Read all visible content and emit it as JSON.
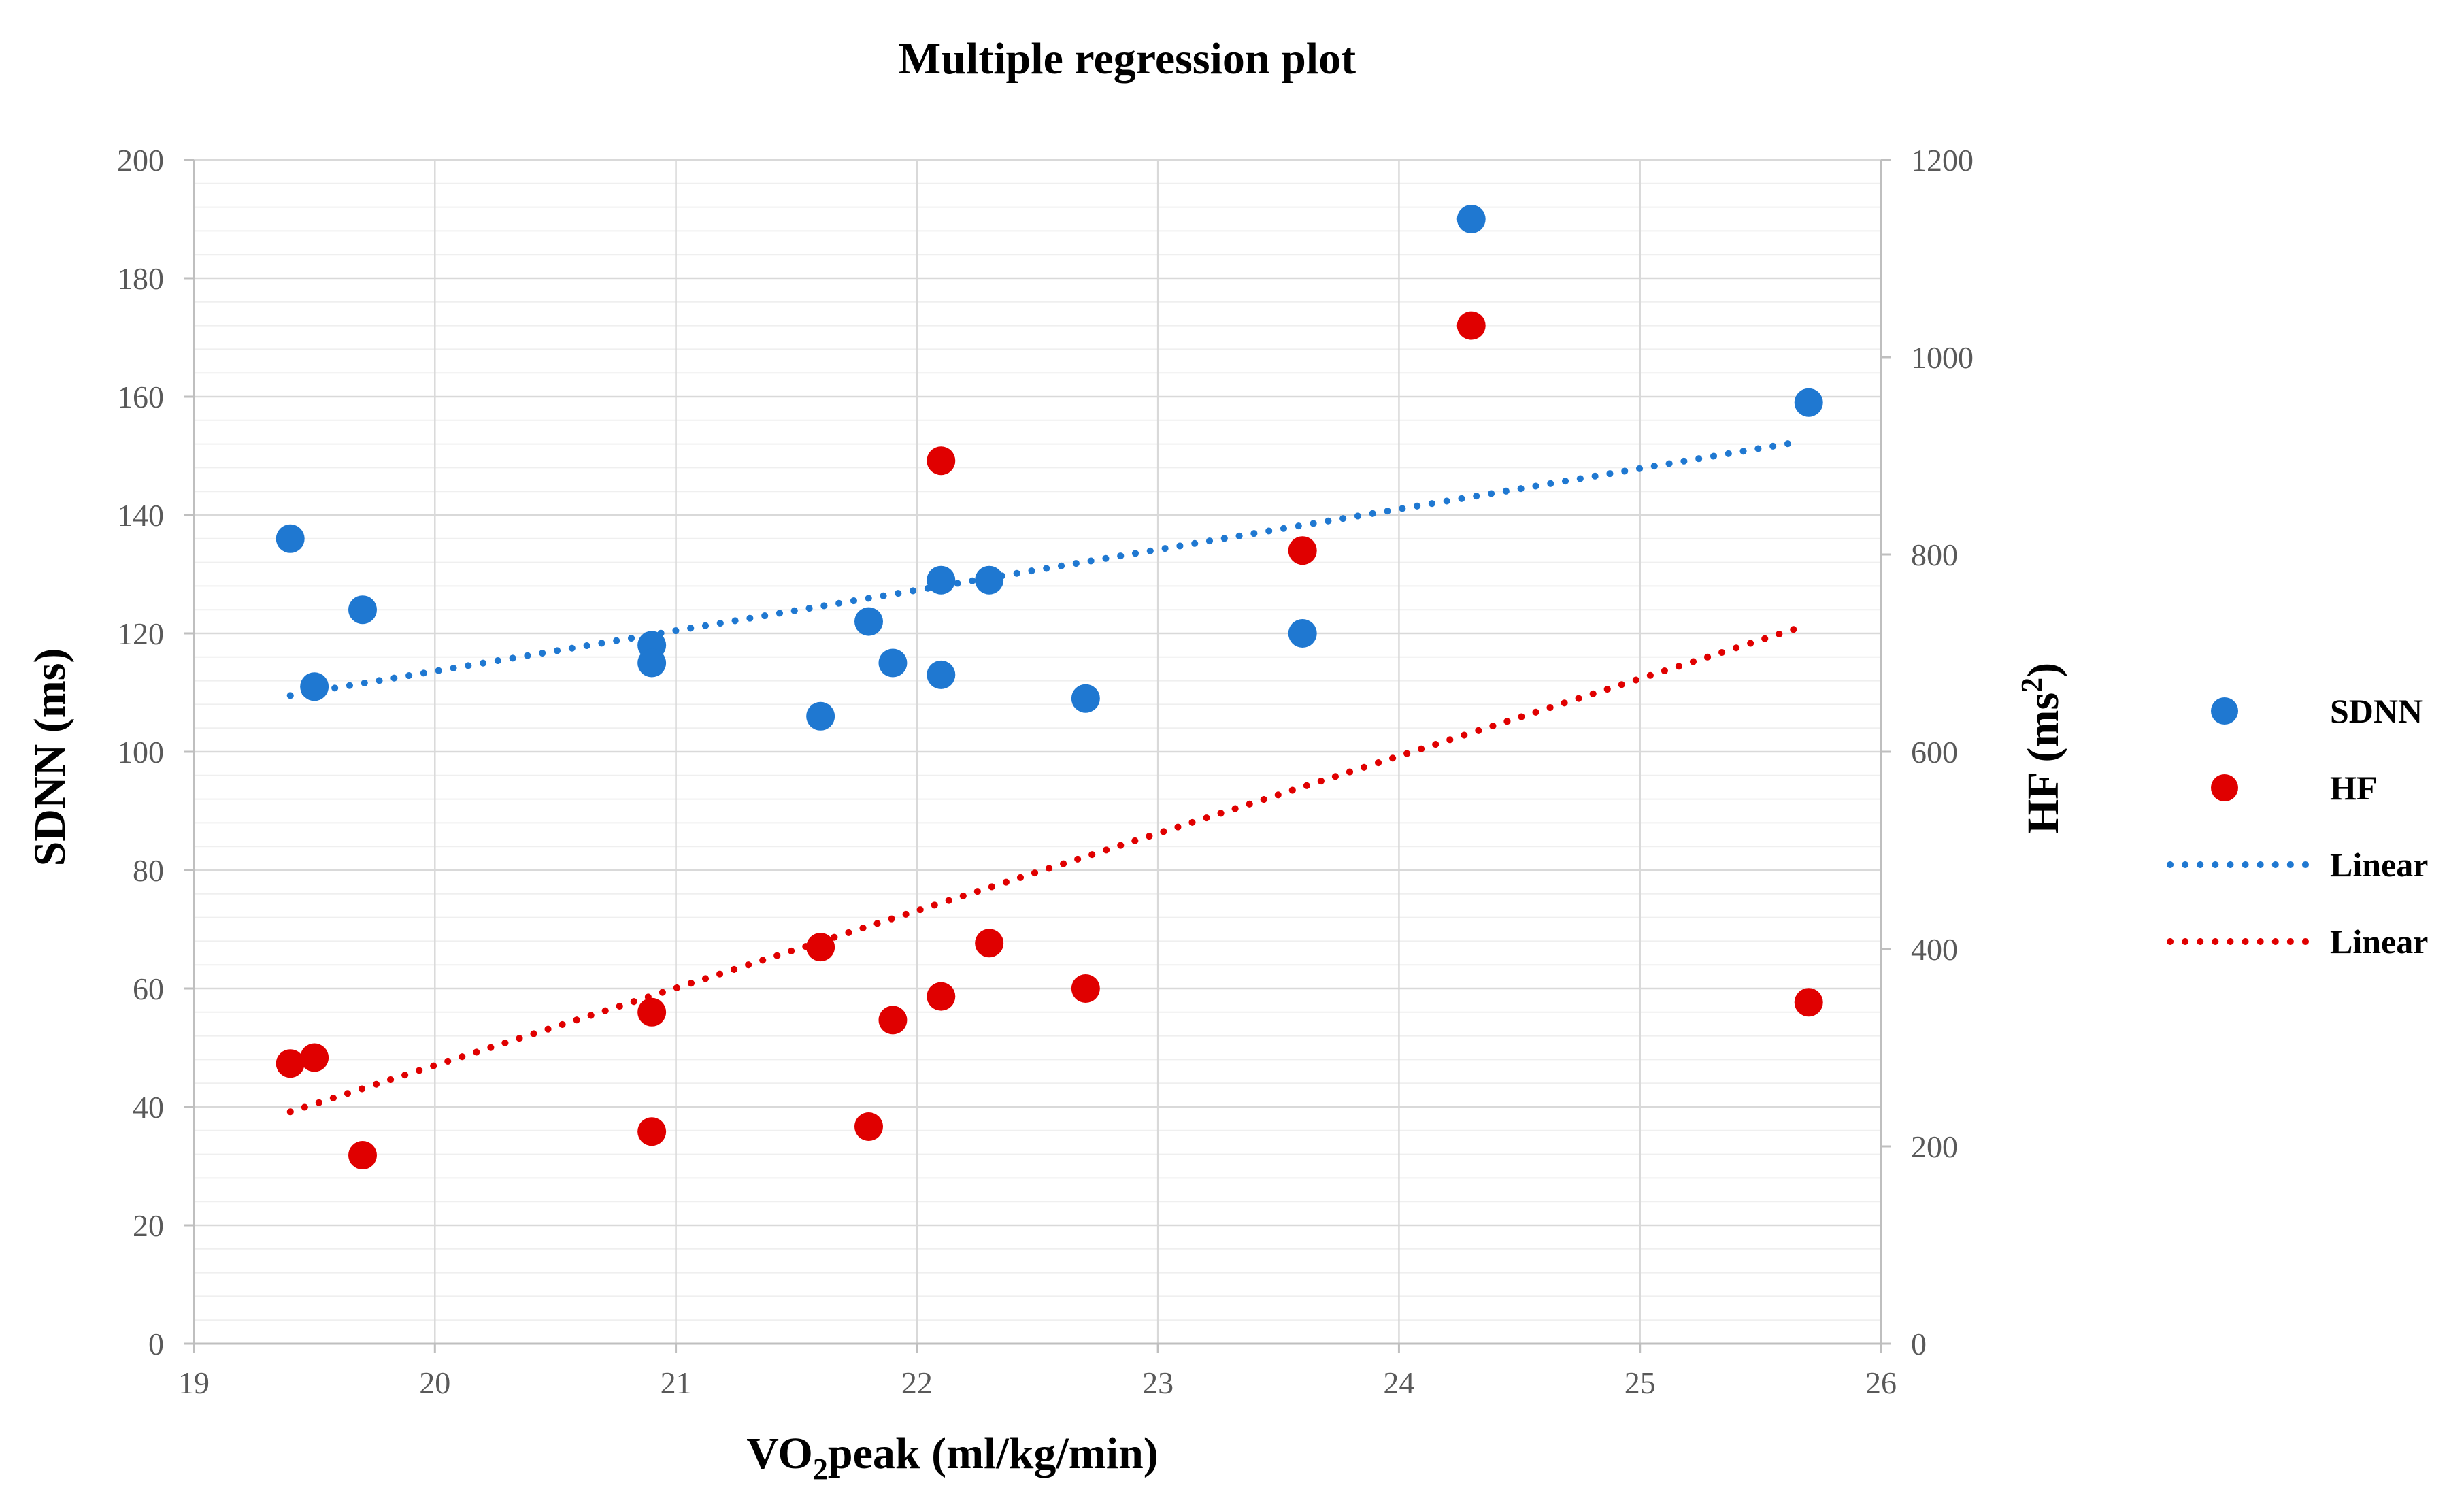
{
  "chart_data": {
    "type": "scatter",
    "title": "Multiple regression plot",
    "xlabel": {
      "main": "VO",
      "sub": "2",
      "rest": "peak (ml/kg/min)"
    },
    "ylabel_left": "SDNN (ms)",
    "ylabel_right": {
      "main": "HF (ms",
      "sup": "2",
      "rest": ")"
    },
    "xlim": [
      19,
      26
    ],
    "ylim_left": [
      0,
      200
    ],
    "ylim_right": [
      0,
      1200
    ],
    "x_ticks": [
      "19",
      "20",
      "21",
      "22",
      "23",
      "24",
      "25",
      "26"
    ],
    "y_left_ticks": [
      "0",
      "20",
      "40",
      "60",
      "80",
      "100",
      "120",
      "140",
      "160",
      "180",
      "200"
    ],
    "y_right_ticks": [
      "0",
      "200",
      "400",
      "600",
      "800",
      "1000",
      "1200"
    ],
    "grid": true,
    "series": [
      {
        "name": "SDNN",
        "axis": "left",
        "color": "#1F78D1",
        "points": [
          [
            19.4,
            136
          ],
          [
            19.5,
            111
          ],
          [
            19.7,
            124
          ],
          [
            20.9,
            118
          ],
          [
            20.9,
            115
          ],
          [
            21.6,
            106
          ],
          [
            21.8,
            122
          ],
          [
            21.9,
            115
          ],
          [
            22.1,
            129
          ],
          [
            22.1,
            113
          ],
          [
            22.3,
            129
          ],
          [
            22.7,
            109
          ],
          [
            23.6,
            120
          ],
          [
            24.3,
            190
          ],
          [
            25.7,
            159
          ]
        ],
        "trendline": {
          "label": "Linear",
          "from": [
            19.4,
            109.5
          ],
          "to": [
            25.65,
            152.3
          ]
        }
      },
      {
        "name": "HF",
        "axis": "right",
        "color": "#E00000",
        "points": [
          [
            19.4,
            284
          ],
          [
            19.5,
            290
          ],
          [
            19.7,
            191
          ],
          [
            20.9,
            336
          ],
          [
            20.9,
            215
          ],
          [
            21.6,
            402
          ],
          [
            21.8,
            220
          ],
          [
            21.9,
            328
          ],
          [
            22.1,
            895
          ],
          [
            22.1,
            352
          ],
          [
            22.3,
            406
          ],
          [
            22.7,
            360
          ],
          [
            23.6,
            804
          ],
          [
            24.3,
            1032
          ],
          [
            25.7,
            346
          ]
        ],
        "trendline": {
          "label": "Linear",
          "from": [
            19.4,
            235
          ],
          "to": [
            25.65,
            725
          ]
        }
      }
    ],
    "legend": {
      "position": "right",
      "entries": [
        {
          "label": "SDNN",
          "kind": "marker",
          "color": "#1F78D1"
        },
        {
          "label": "HF",
          "kind": "marker",
          "color": "#E00000"
        },
        {
          "label": "Linear",
          "kind": "line",
          "color": "#1F78D1"
        },
        {
          "label": "Linear",
          "kind": "line",
          "color": "#E00000"
        }
      ]
    },
    "colors": {
      "grid": "#D9D9D9",
      "minor_grid": "#EFEFEF",
      "axis": "#BFBFBF"
    }
  }
}
